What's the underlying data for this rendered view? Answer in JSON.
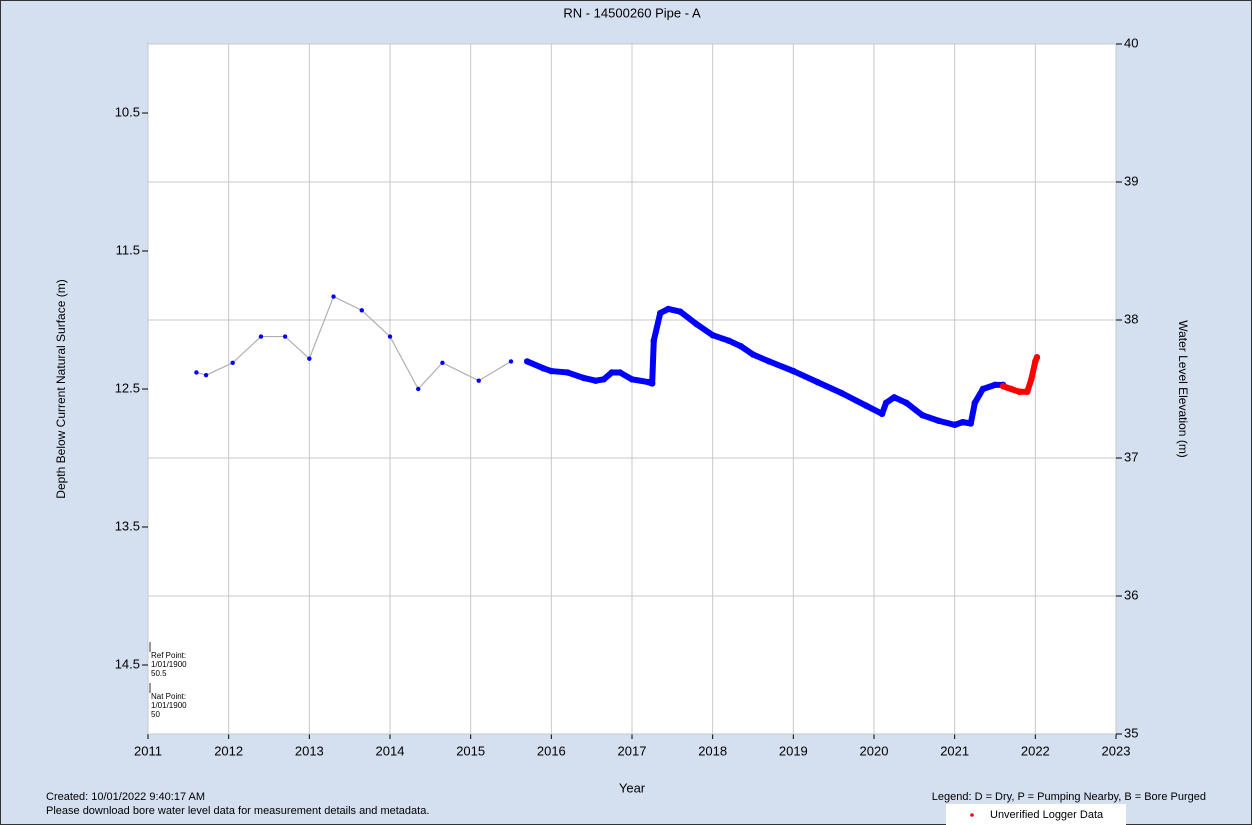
{
  "chart_data": {
    "type": "line",
    "title": "RN - 14500260 Pipe - A",
    "x_label": "Year",
    "y_label": "Depth Below Current Natural Surface (m)",
    "y2_label": "Water Level Elevation (m)",
    "xlim": [
      2011,
      2023
    ],
    "xticks": [
      2011,
      2012,
      2013,
      2014,
      2015,
      2016,
      2017,
      2018,
      2019,
      2020,
      2021,
      2022,
      2023
    ],
    "ylim": [
      15,
      10
    ],
    "yticks": [
      10.5,
      11.5,
      12.5,
      13.5,
      14.5
    ],
    "y2lim": [
      35,
      40
    ],
    "y2ticks": [
      35,
      36,
      37,
      38,
      39,
      40
    ],
    "grid": true,
    "series": [
      {
        "color": "#0000ff",
        "line_color": "#b0b0b0",
        "style": "manual",
        "x": [
          2011.6,
          2011.72,
          2012.05,
          2012.4,
          2012.7,
          2013.0,
          2013.3,
          2013.65,
          2014.0,
          2014.35,
          2014.65,
          2015.1,
          2015.5
        ],
        "values": [
          12.38,
          12.4,
          12.31,
          12.12,
          12.12,
          12.28,
          11.83,
          11.93,
          12.12,
          12.5,
          12.31,
          12.44,
          12.3
        ]
      },
      {
        "color": "#0000ff",
        "style": "logger",
        "x": [
          2015.7,
          2015.9,
          2016.0,
          2016.2,
          2016.4,
          2016.55,
          2016.65,
          2016.75,
          2016.85,
          2017.0,
          2017.2,
          2017.25,
          2017.27,
          2017.35,
          2017.45,
          2017.6,
          2017.8,
          2018.0,
          2018.2,
          2018.35,
          2018.5,
          2018.7,
          2019.0,
          2019.3,
          2019.6,
          2019.9,
          2020.1,
          2020.15,
          2020.25,
          2020.4,
          2020.6,
          2020.8,
          2021.0,
          2021.1,
          2021.2,
          2021.25,
          2021.35,
          2021.5,
          2021.6
        ],
        "values": [
          12.3,
          12.35,
          12.37,
          12.38,
          12.42,
          12.44,
          12.43,
          12.38,
          12.38,
          12.43,
          12.45,
          12.46,
          12.15,
          11.95,
          11.92,
          11.94,
          12.03,
          12.11,
          12.15,
          12.19,
          12.25,
          12.3,
          12.37,
          12.45,
          12.53,
          12.62,
          12.68,
          12.6,
          12.56,
          12.6,
          12.69,
          12.73,
          12.76,
          12.74,
          12.75,
          12.6,
          12.5,
          12.47,
          12.47
        ]
      },
      {
        "name": "Unverified Logger Data",
        "color": "#ff0000",
        "style": "logger",
        "x": [
          2021.6,
          2021.7,
          2021.8,
          2021.9,
          2021.95,
          2022.0,
          2022.02
        ],
        "values": [
          12.48,
          12.5,
          12.52,
          12.52,
          12.43,
          12.3,
          12.27
        ]
      }
    ],
    "annotations": [
      "Ref Point:",
      "1/01/1900",
      "50.5",
      "Nat Point:",
      "1/01/1900",
      "50"
    ],
    "created": "Created: 10/01/2022 9:40:17 AM",
    "footnote": "Please download bore water level data for measurement details and metadata.",
    "legend_note": "Legend: D = Dry, P = Pumping Nearby, B = Bore Purged"
  }
}
